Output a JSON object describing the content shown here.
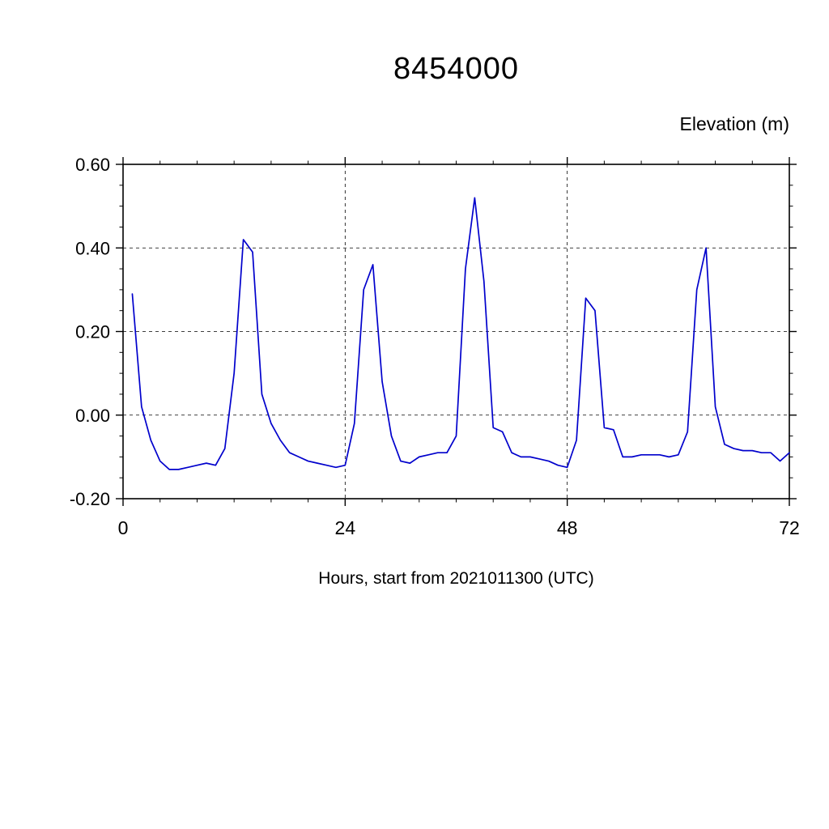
{
  "title": "8454000",
  "chart_data": {
    "type": "line",
    "title": "8454000",
    "ylabel": "Elevation (m)",
    "xlabel": "Hours, start from 2021011300 (UTC)",
    "xlim": [
      0,
      72
    ],
    "ylim": [
      -0.2,
      0.6
    ],
    "xticks": [
      0,
      24,
      48,
      72
    ],
    "xtick_labels": [
      "0",
      "24",
      "48",
      "72"
    ],
    "x_minor_step": 4,
    "yticks": [
      -0.2,
      0.0,
      0.2,
      0.4,
      0.6
    ],
    "ytick_labels": [
      "-0.20",
      "0.00",
      "0.20",
      "0.40",
      "0.60"
    ],
    "y_minor_step": 0.05,
    "grid_x": [
      24,
      48
    ],
    "grid_y": [
      0.0,
      0.2,
      0.4,
      0.6
    ],
    "grid_style": "dashed",
    "legend_position": "none",
    "line_color": "#0000CC",
    "series": [
      {
        "name": "elevation",
        "x": [
          1,
          2,
          3,
          4,
          5,
          6,
          7,
          8,
          9,
          10,
          11,
          12,
          13,
          14,
          15,
          16,
          17,
          18,
          19,
          20,
          21,
          22,
          23,
          24,
          25,
          26,
          27,
          28,
          29,
          30,
          31,
          32,
          33,
          34,
          35,
          36,
          37,
          38,
          39,
          40,
          41,
          42,
          43,
          44,
          45,
          46,
          47,
          48,
          49,
          50,
          51,
          52,
          53,
          54,
          55,
          56,
          57,
          58,
          59,
          60,
          61,
          62,
          63,
          64,
          65,
          66,
          67,
          68,
          69,
          70,
          71,
          72
        ],
        "y": [
          0.29,
          0.02,
          -0.06,
          -0.11,
          -0.13,
          -0.13,
          -0.125,
          -0.12,
          -0.115,
          -0.12,
          -0.08,
          0.1,
          0.42,
          0.39,
          0.05,
          -0.02,
          -0.06,
          -0.09,
          -0.1,
          -0.11,
          -0.115,
          -0.12,
          -0.125,
          -0.12,
          -0.02,
          0.3,
          0.36,
          0.08,
          -0.05,
          -0.11,
          -0.115,
          -0.1,
          -0.095,
          -0.09,
          -0.09,
          -0.05,
          0.35,
          0.52,
          0.32,
          -0.03,
          -0.04,
          -0.09,
          -0.1,
          -0.1,
          -0.105,
          -0.11,
          -0.12,
          -0.125,
          -0.06,
          0.28,
          0.25,
          -0.03,
          -0.035,
          -0.1,
          -0.1,
          -0.095,
          -0.095,
          -0.095,
          -0.1,
          -0.095,
          -0.04,
          0.3,
          0.4,
          0.02,
          -0.07,
          -0.08,
          -0.085,
          -0.085,
          -0.09,
          -0.09,
          -0.11,
          -0.09
        ]
      }
    ]
  }
}
